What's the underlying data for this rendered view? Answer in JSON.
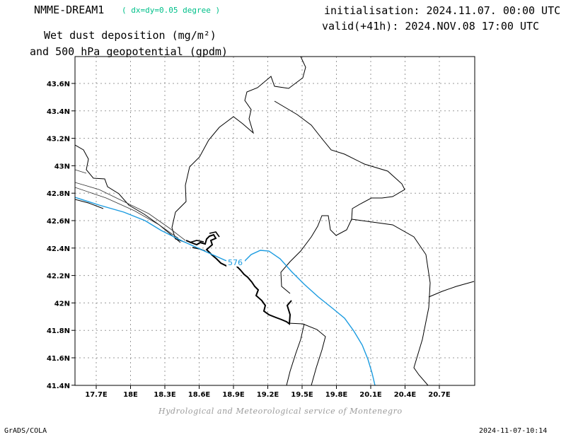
{
  "header": {
    "model": "NMME-DREAM1",
    "resolution": "( dx=dy=0.05 degree )",
    "field_line1": "Wet dust deposition (mg/m²)",
    "field_line2": "and 500 hPa geopotential (gpdm)",
    "initialisation": "initialisation: 2024.11.07. 00:00 UTC",
    "valid": "valid(+41h): 2024.NOV.08 17:00 UTC"
  },
  "map": {
    "lon_ticks": [
      "17.7E",
      "18E",
      "18.3E",
      "18.6E",
      "18.9E",
      "19.2E",
      "19.5E",
      "19.8E",
      "20.1E",
      "20.4E",
      "20.7E"
    ],
    "lat_ticks": [
      "43.6N",
      "43.4N",
      "43.2N",
      "43N",
      "42.8N",
      "42.6N",
      "42.4N",
      "42.2N",
      "42N",
      "41.8N",
      "41.6N",
      "41.4N"
    ],
    "contour_label": "576",
    "colors": {
      "contour": "#1a9be0",
      "coast": "#000000",
      "border": "#000000",
      "grid": "#9a9a9a"
    }
  },
  "footer": {
    "credit": "Hydrological and Meteorological service of Montenegro",
    "software": "GrADS/COLA",
    "timestamp": "2024-11-07-10:14"
  }
}
